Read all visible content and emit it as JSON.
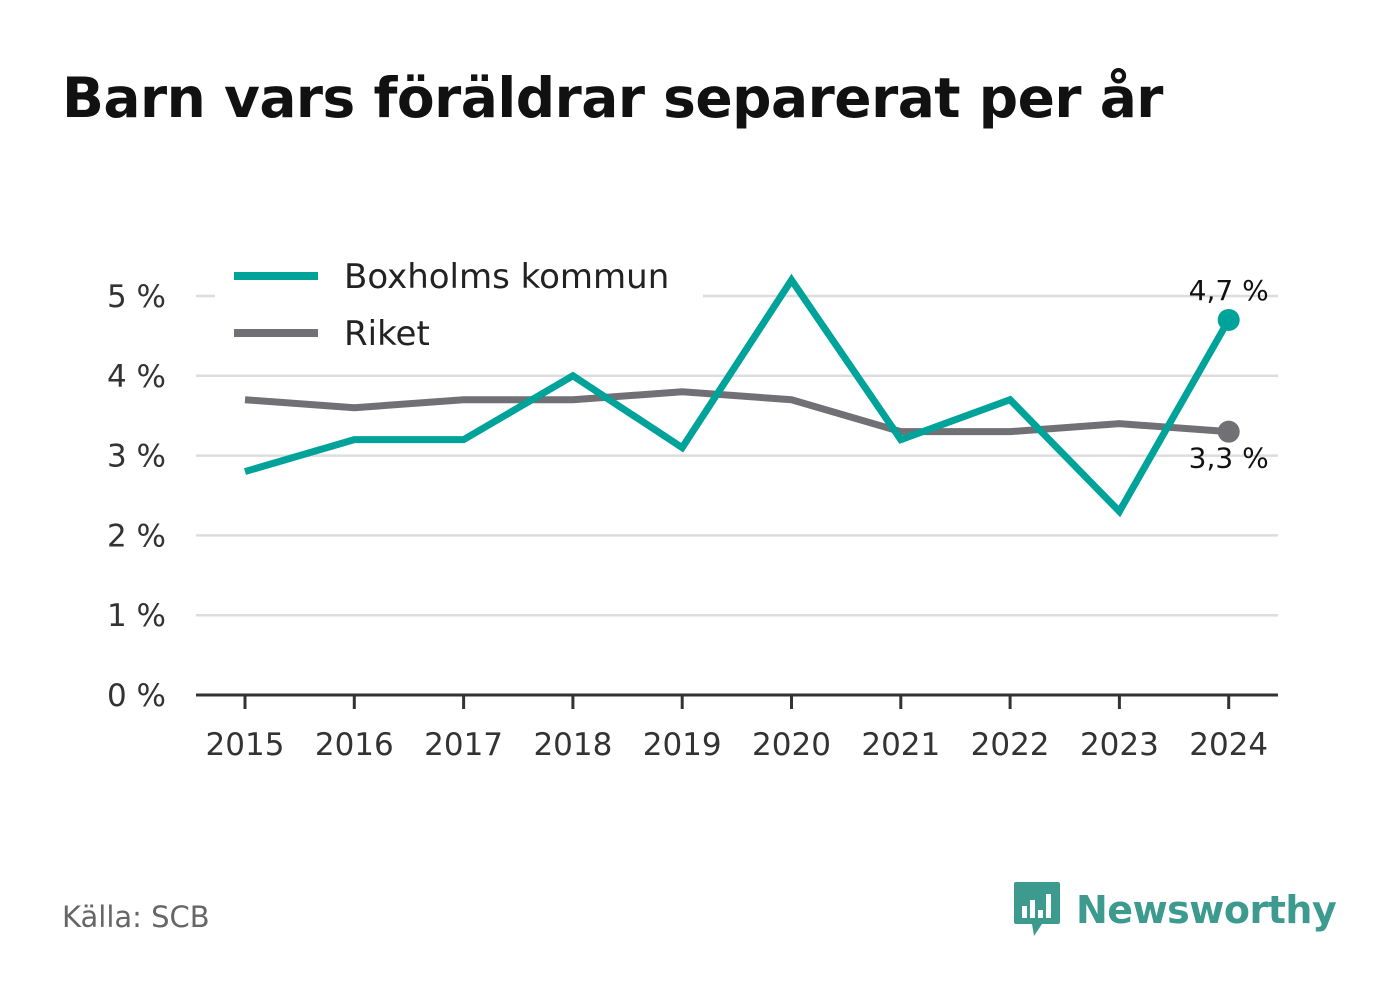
{
  "title": "Barn vars föräldrar separerat per år",
  "source": "Källa: SCB",
  "brand": {
    "name": "Newsworthy",
    "icon": "newsworthy-logo-icon",
    "color": "#3c9a8e"
  },
  "chart_data": {
    "type": "line",
    "title": "Barn vars föräldrar separerat per år",
    "xlabel": "",
    "ylabel": "",
    "categories": [
      "2015",
      "2016",
      "2017",
      "2018",
      "2019",
      "2020",
      "2021",
      "2022",
      "2023",
      "2024"
    ],
    "ylim": [
      0,
      5
    ],
    "yticks": [
      0,
      1,
      2,
      3,
      4,
      5
    ],
    "ytick_labels": [
      "0 %",
      "1 %",
      "2 %",
      "3 %",
      "4 %",
      "5 %"
    ],
    "grid": true,
    "legend_position": "top-left",
    "series": [
      {
        "name": "Boxholms kommun",
        "color": "#00a39a",
        "values": [
          2.8,
          3.2,
          3.2,
          4.0,
          3.1,
          5.2,
          3.2,
          3.7,
          2.3,
          4.7
        ],
        "end_label": "4,7 %"
      },
      {
        "name": "Riket",
        "color": "#717075",
        "values": [
          3.7,
          3.6,
          3.7,
          3.7,
          3.8,
          3.7,
          3.3,
          3.3,
          3.4,
          3.3
        ],
        "end_label": "3,3 %"
      }
    ]
  }
}
